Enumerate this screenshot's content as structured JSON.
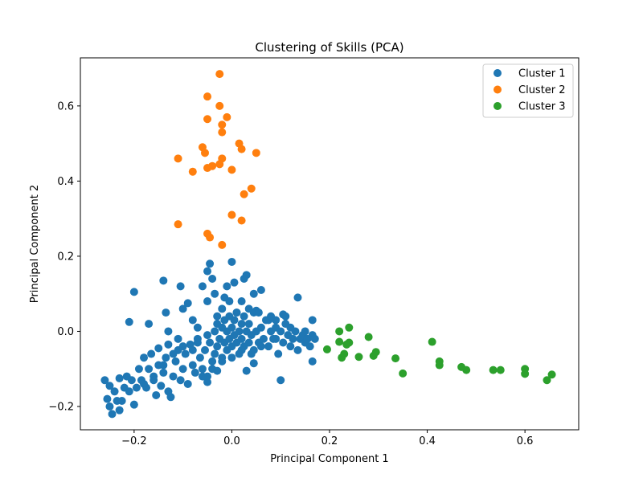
{
  "chart_data": {
    "type": "scatter",
    "title": "Clustering of Skills (PCA)",
    "xlabel": "Principal Component 1",
    "ylabel": "Principal Component 2",
    "xlim": [
      -0.31,
      0.71
    ],
    "ylim": [
      -0.262,
      0.728
    ],
    "xticks": [
      -0.2,
      0.0,
      0.2,
      0.4,
      0.6
    ],
    "xtick_labels": [
      "−0.2",
      "0.0",
      "0.2",
      "0.4",
      "0.6"
    ],
    "yticks": [
      -0.2,
      0.0,
      0.2,
      0.4,
      0.6
    ],
    "ytick_labels": [
      "−0.2",
      "0.0",
      "0.2",
      "0.4",
      "0.6"
    ],
    "grid": false,
    "legend_position": "top-right",
    "series": [
      {
        "name": "Cluster 1",
        "color": "#1f77b4",
        "points": [
          [
            -0.26,
            -0.13
          ],
          [
            -0.255,
            -0.18
          ],
          [
            -0.25,
            -0.2
          ],
          [
            -0.25,
            -0.145
          ],
          [
            -0.245,
            -0.22
          ],
          [
            -0.24,
            -0.16
          ],
          [
            -0.235,
            -0.185
          ],
          [
            -0.23,
            -0.125
          ],
          [
            -0.23,
            -0.21
          ],
          [
            -0.225,
            -0.185
          ],
          [
            -0.22,
            -0.15
          ],
          [
            -0.215,
            -0.12
          ],
          [
            -0.21,
            -0.16
          ],
          [
            -0.205,
            -0.13
          ],
          [
            -0.2,
            -0.195
          ],
          [
            -0.195,
            -0.15
          ],
          [
            -0.19,
            -0.1
          ],
          [
            -0.185,
            -0.13
          ],
          [
            -0.18,
            -0.07
          ],
          [
            -0.175,
            -0.15
          ],
          [
            -0.17,
            -0.1
          ],
          [
            -0.165,
            -0.06
          ],
          [
            -0.16,
            -0.13
          ],
          [
            -0.155,
            -0.17
          ],
          [
            -0.15,
            -0.045
          ],
          [
            -0.15,
            -0.09
          ],
          [
            -0.145,
            -0.145
          ],
          [
            -0.14,
            -0.11
          ],
          [
            -0.135,
            -0.07
          ],
          [
            -0.13,
            -0.16
          ],
          [
            -0.13,
            -0.035
          ],
          [
            -0.125,
            -0.175
          ],
          [
            -0.12,
            -0.12
          ],
          [
            -0.115,
            -0.08
          ],
          [
            -0.11,
            -0.05
          ],
          [
            -0.105,
            -0.13
          ],
          [
            -0.1,
            -0.1
          ],
          [
            -0.095,
            -0.06
          ],
          [
            -0.09,
            -0.14
          ],
          [
            -0.085,
            -0.035
          ],
          [
            -0.08,
            -0.09
          ],
          [
            -0.075,
            -0.11
          ],
          [
            -0.07,
            -0.02
          ],
          [
            -0.065,
            -0.07
          ],
          [
            -0.06,
            -0.1
          ],
          [
            -0.055,
            -0.05
          ],
          [
            -0.05,
            -0.01
          ],
          [
            -0.05,
            -0.12
          ],
          [
            -0.045,
            -0.03
          ],
          [
            -0.04,
            -0.08
          ],
          [
            -0.035,
            0.0
          ],
          [
            -0.035,
            -0.06
          ],
          [
            -0.03,
            0.02
          ],
          [
            -0.03,
            -0.04
          ],
          [
            -0.025,
            -0.02
          ],
          [
            -0.02,
            0.01
          ],
          [
            -0.02,
            -0.07
          ],
          [
            -0.015,
            0.03
          ],
          [
            -0.015,
            -0.03
          ],
          [
            -0.01,
            0.0
          ],
          [
            -0.01,
            -0.05
          ],
          [
            -0.005,
            0.04
          ],
          [
            -0.005,
            -0.02
          ],
          [
            0.0,
            0.01
          ],
          [
            0.0,
            -0.04
          ],
          [
            0.005,
            -0.01
          ],
          [
            0.005,
            0.03
          ],
          [
            0.01,
            -0.03
          ],
          [
            0.01,
            0.05
          ],
          [
            0.015,
            0.0
          ],
          [
            0.015,
            -0.06
          ],
          [
            0.02,
            0.02
          ],
          [
            0.02,
            -0.02
          ],
          [
            0.025,
            0.04
          ],
          [
            0.025,
            -0.04
          ],
          [
            0.03,
            0.0
          ],
          [
            0.035,
            -0.03
          ],
          [
            0.035,
            0.02
          ],
          [
            0.04,
            -0.01
          ],
          [
            0.045,
            0.05
          ],
          [
            0.045,
            -0.05
          ],
          [
            0.05,
            0.0
          ],
          [
            0.055,
            -0.03
          ],
          [
            0.06,
            0.01
          ],
          [
            0.065,
            -0.02
          ],
          [
            0.07,
            0.03
          ],
          [
            0.075,
            -0.04
          ],
          [
            0.08,
            0.0
          ],
          [
            0.085,
            -0.02
          ],
          [
            0.09,
            0.01
          ],
          [
            0.095,
            -0.06
          ],
          [
            0.1,
            0.0
          ],
          [
            0.105,
            -0.03
          ],
          [
            0.11,
            0.02
          ],
          [
            0.115,
            -0.01
          ],
          [
            0.12,
            -0.04
          ],
          [
            0.125,
            -0.02
          ],
          [
            0.13,
            0.0
          ],
          [
            0.135,
            -0.05
          ],
          [
            0.14,
            -0.02
          ],
          [
            0.145,
            -0.01
          ],
          [
            0.15,
            -0.03
          ],
          [
            0.155,
            -0.02
          ],
          [
            0.16,
            -0.04
          ],
          [
            0.165,
            -0.01
          ],
          [
            0.17,
            -0.02
          ],
          [
            -0.21,
            0.025
          ],
          [
            -0.2,
            0.105
          ],
          [
            -0.17,
            0.02
          ],
          [
            -0.14,
            0.135
          ],
          [
            -0.135,
            0.05
          ],
          [
            -0.13,
            0.0
          ],
          [
            -0.11,
            -0.02
          ],
          [
            -0.105,
            0.12
          ],
          [
            -0.1,
            0.06
          ],
          [
            -0.09,
            0.075
          ],
          [
            -0.08,
            0.03
          ],
          [
            -0.07,
            0.01
          ],
          [
            -0.06,
            0.12
          ],
          [
            -0.05,
            0.08
          ],
          [
            -0.05,
            0.16
          ],
          [
            -0.045,
            0.18
          ],
          [
            -0.04,
            0.14
          ],
          [
            -0.035,
            0.1
          ],
          [
            -0.03,
            0.04
          ],
          [
            -0.02,
            0.06
          ],
          [
            -0.015,
            0.09
          ],
          [
            -0.01,
            0.12
          ],
          [
            -0.005,
            0.08
          ],
          [
            0.0,
            0.185
          ],
          [
            0.005,
            0.13
          ],
          [
            0.01,
            0.05
          ],
          [
            0.02,
            0.08
          ],
          [
            0.025,
            0.14
          ],
          [
            0.03,
            0.15
          ],
          [
            0.035,
            0.06
          ],
          [
            0.045,
            0.1
          ],
          [
            0.05,
            0.055
          ],
          [
            0.055,
            0.05
          ],
          [
            0.06,
            0.11
          ],
          [
            0.075,
            0.03
          ],
          [
            0.08,
            0.04
          ],
          [
            0.09,
            -0.02
          ],
          [
            0.1,
            -0.13
          ],
          [
            0.105,
            0.045
          ],
          [
            0.11,
            0.04
          ],
          [
            0.135,
            0.09
          ],
          [
            0.165,
            0.03
          ],
          [
            0.165,
            -0.08
          ],
          [
            0.15,
            0.0
          ],
          [
            0.12,
            0.01
          ],
          [
            0.09,
            0.03
          ],
          [
            -0.06,
            -0.12
          ],
          [
            -0.04,
            -0.1
          ],
          [
            -0.02,
            -0.08
          ],
          [
            0.0,
            -0.07
          ],
          [
            0.02,
            -0.05
          ],
          [
            0.04,
            -0.06
          ],
          [
            0.06,
            -0.04
          ],
          [
            -0.08,
            -0.05
          ],
          [
            -0.1,
            -0.04
          ],
          [
            -0.12,
            -0.06
          ],
          [
            -0.14,
            -0.09
          ],
          [
            -0.16,
            -0.12
          ],
          [
            -0.18,
            -0.14
          ],
          [
            -0.07,
            -0.03
          ],
          [
            0.03,
            -0.105
          ],
          [
            0.045,
            -0.085
          ],
          [
            -0.03,
            -0.105
          ],
          [
            -0.05,
            -0.135
          ]
        ]
      },
      {
        "name": "Cluster 2",
        "color": "#ff7f0e",
        "points": [
          [
            -0.025,
            0.685
          ],
          [
            -0.05,
            0.625
          ],
          [
            -0.025,
            0.6
          ],
          [
            -0.01,
            0.57
          ],
          [
            -0.05,
            0.565
          ],
          [
            -0.02,
            0.55
          ],
          [
            -0.02,
            0.53
          ],
          [
            0.015,
            0.5
          ],
          [
            -0.06,
            0.49
          ],
          [
            0.02,
            0.485
          ],
          [
            -0.055,
            0.475
          ],
          [
            0.05,
            0.475
          ],
          [
            -0.11,
            0.46
          ],
          [
            -0.02,
            0.46
          ],
          [
            -0.04,
            0.44
          ],
          [
            -0.05,
            0.435
          ],
          [
            -0.025,
            0.445
          ],
          [
            0.0,
            0.43
          ],
          [
            -0.08,
            0.425
          ],
          [
            0.04,
            0.38
          ],
          [
            0.025,
            0.365
          ],
          [
            0.0,
            0.31
          ],
          [
            0.02,
            0.295
          ],
          [
            -0.11,
            0.285
          ],
          [
            -0.05,
            0.26
          ],
          [
            -0.045,
            0.25
          ],
          [
            -0.02,
            0.23
          ]
        ]
      },
      {
        "name": "Cluster 3",
        "color": "#2ca02c",
        "points": [
          [
            0.195,
            -0.048
          ],
          [
            0.22,
            0.0
          ],
          [
            0.22,
            -0.028
          ],
          [
            0.225,
            -0.07
          ],
          [
            0.23,
            -0.06
          ],
          [
            0.235,
            -0.035
          ],
          [
            0.24,
            -0.03
          ],
          [
            0.24,
            0.01
          ],
          [
            0.26,
            -0.068
          ],
          [
            0.28,
            -0.015
          ],
          [
            0.29,
            -0.065
          ],
          [
            0.295,
            -0.055
          ],
          [
            0.335,
            -0.072
          ],
          [
            0.35,
            -0.112
          ],
          [
            0.41,
            -0.028
          ],
          [
            0.425,
            -0.08
          ],
          [
            0.425,
            -0.09
          ],
          [
            0.47,
            -0.095
          ],
          [
            0.48,
            -0.103
          ],
          [
            0.535,
            -0.103
          ],
          [
            0.55,
            -0.103
          ],
          [
            0.6,
            -0.1
          ],
          [
            0.6,
            -0.113
          ],
          [
            0.645,
            -0.13
          ],
          [
            0.655,
            -0.115
          ]
        ]
      }
    ]
  }
}
